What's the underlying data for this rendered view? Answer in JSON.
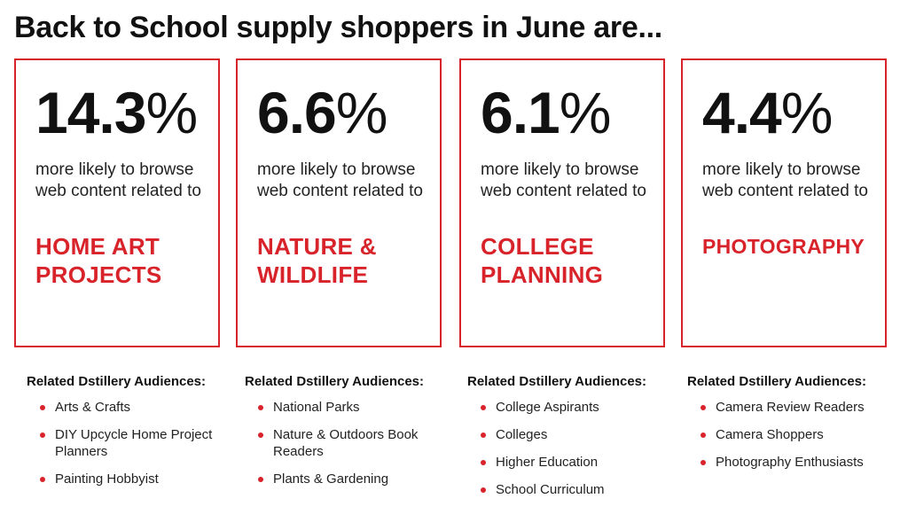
{
  "title": "Back to School supply shoppers in June are...",
  "accent_color": "#d8232a",
  "cards": [
    {
      "stat_number": "14.3",
      "stat_unit": "%",
      "description": "more likely to browse web content related to",
      "topic": "HOME ART PROJECTS",
      "related_heading": "Related Dstillery Audiences:",
      "audiences": [
        "Arts & Crafts",
        "DIY Upcycle Home Project Planners",
        "Painting Hobbyist"
      ]
    },
    {
      "stat_number": "6.6",
      "stat_unit": "%",
      "description": "more likely to browse web content related to",
      "topic": "NATURE & WILDLIFE",
      "related_heading": "Related Dstillery Audiences:",
      "audiences": [
        "National Parks",
        "Nature & Outdoors Book Readers",
        "Plants & Gardening"
      ]
    },
    {
      "stat_number": "6.1",
      "stat_unit": "%",
      "description": "more likely to browse web content related to",
      "topic": "COLLEGE PLANNING",
      "related_heading": "Related Dstillery Audiences:",
      "audiences": [
        "College Aspirants",
        "Colleges",
        "Higher Education",
        "School Curriculum"
      ]
    },
    {
      "stat_number": "4.4",
      "stat_unit": "%",
      "description": "more likely to browse web content related to",
      "topic": "PHOTOGRAPHY",
      "related_heading": "Related Dstillery Audiences:",
      "audiences": [
        "Camera Review Readers",
        "Camera Shoppers",
        "Photography Enthusiasts"
      ]
    }
  ]
}
